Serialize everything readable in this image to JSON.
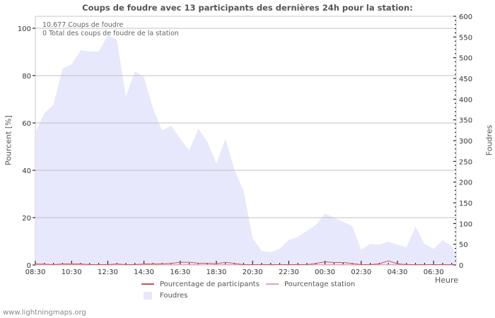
{
  "chart_data": {
    "type": "area",
    "title": "Coups de foudre avec 13 participants des dernières 24h pour la station:",
    "xlabel": "Heure",
    "ylabel_left": "Pourcent   [%]",
    "ylabel_right": "Foudres",
    "ylim_left": [
      0,
      100
    ],
    "ylim_right": [
      0,
      600
    ],
    "left_ticks": [
      "0",
      "20",
      "40",
      "60",
      "80",
      "100"
    ],
    "right_ticks": [
      "0",
      "50",
      "100",
      "150",
      "200",
      "250",
      "300",
      "350",
      "400",
      "450",
      "500",
      "550",
      "600"
    ],
    "x_tick_labels": [
      "08:30",
      "10:30",
      "12:30",
      "14:30",
      "16:30",
      "18:30",
      "20:30",
      "22:30",
      "00:30",
      "02:30",
      "04:30",
      "06:30"
    ],
    "grid": true,
    "legend_position": "bottom",
    "annotations": [
      "10.677  Coups de foudre",
      "0 Total des coups de foudre de la station"
    ],
    "x": [
      "08:30",
      "09:00",
      "09:30",
      "10:00",
      "10:30",
      "11:00",
      "11:30",
      "12:00",
      "12:30",
      "13:00",
      "13:30",
      "14:00",
      "14:30",
      "15:00",
      "15:30",
      "16:00",
      "16:30",
      "17:00",
      "17:30",
      "18:00",
      "18:30",
      "19:00",
      "19:30",
      "20:00",
      "20:30",
      "21:00",
      "21:30",
      "22:00",
      "22:30",
      "23:00",
      "23:30",
      "00:00",
      "00:30",
      "01:00",
      "01:30",
      "02:00",
      "02:30",
      "03:00",
      "03:30",
      "04:00",
      "04:30",
      "05:00",
      "05:30",
      "06:00",
      "06:30",
      "07:00",
      "07:30",
      "07:50"
    ],
    "series": [
      {
        "name": "Foudres",
        "axis": "right",
        "color": "#e8e8fc",
        "values": [
          320,
          366,
          387,
          474,
          484,
          518,
          515,
          515,
          554,
          544,
          406,
          467,
          453,
          378,
          324,
          336,
          305,
          276,
          329,
          298,
          244,
          305,
          230,
          179,
          65,
          34,
          31,
          39,
          60,
          68,
          82,
          97,
          124,
          114,
          104,
          94,
          37,
          51,
          49,
          56,
          49,
          43,
          92,
          51,
          39,
          60,
          46,
          26
        ]
      },
      {
        "name": "Pourcentage de participants",
        "axis": "left",
        "color": "#d0505a",
        "values": [
          0.3,
          0.2,
          0,
          0.3,
          0.3,
          0.3,
          0,
          0,
          0,
          0.3,
          0,
          0,
          0.3,
          0.3,
          0.4,
          0.5,
          1,
          1,
          0.6,
          0.6,
          0.4,
          1,
          0.5,
          0,
          0,
          0,
          0,
          0,
          0,
          0,
          0,
          0.5,
          1.2,
          0.9,
          0.9,
          0.5,
          0,
          0,
          0.4,
          1.6,
          0.4,
          0,
          0,
          0,
          0,
          0,
          0,
          0
        ]
      },
      {
        "name": "Pourcentage station",
        "axis": "left",
        "color": "#f0a0a0",
        "values": [
          0,
          0,
          0,
          0,
          0,
          0,
          0,
          0,
          0,
          0,
          0,
          0,
          0,
          0,
          0,
          0,
          0,
          0,
          0,
          0,
          0,
          0,
          0,
          0,
          0,
          0,
          0,
          0,
          0,
          0,
          0,
          0,
          0,
          0,
          0,
          0,
          0,
          0,
          0,
          0,
          0,
          0,
          0,
          0,
          0,
          0,
          0,
          0
        ]
      }
    ]
  },
  "legend": {
    "participants": "Pourcentage de participants",
    "station": "Pourcentage station",
    "foudres": "Foudres"
  },
  "info": {
    "line1": "10.677  Coups de foudre",
    "line2": "0 Total des coups de foudre de la station"
  },
  "footer": "www.lightningmaps.org",
  "colors": {
    "area": "#e8e8fc",
    "participants": "#d0505a",
    "station": "#f0a0a0",
    "grid": "#c0c0c0",
    "text": "#555555"
  }
}
